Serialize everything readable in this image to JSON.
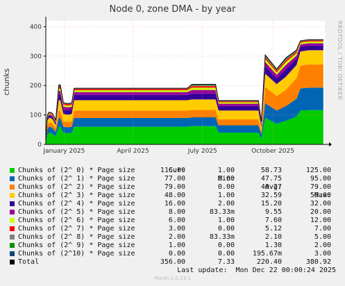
{
  "title": "Node 0, zone DMA - by year",
  "side_label": "RRDTOOL / TOBI OETIKER",
  "legend_headers": [
    "Cur:",
    "Min:",
    "Avg:",
    "Max:"
  ],
  "legend": [
    {
      "name": "Chunks of (2^ 0) * Page size",
      "color": "#00cc00",
      "cur": "116.00",
      "min": "1.00",
      "avg": "58.73",
      "max": "125.00"
    },
    {
      "name": "Chunks of (2^ 1) * Page size",
      "color": "#0066b3",
      "cur": "77.00",
      "min": "0.00",
      "avg": "47.75",
      "max": "95.00"
    },
    {
      "name": "Chunks of (2^ 2) * Page size",
      "color": "#ff8000",
      "cur": "79.00",
      "min": "0.00",
      "avg": "40.27",
      "max": "79.00"
    },
    {
      "name": "Chunks of (2^ 3) * Page size",
      "color": "#ffcc00",
      "cur": "48.00",
      "min": "1.00",
      "avg": "32.59",
      "max": "59.00"
    },
    {
      "name": "Chunks of (2^ 4) * Page size",
      "color": "#330099",
      "cur": "16.00",
      "min": "2.00",
      "avg": "15.20",
      "max": "32.00"
    },
    {
      "name": "Chunks of (2^ 5) * Page size",
      "color": "#990099",
      "cur": "8.00",
      "min": "83.33m",
      "avg": "9.55",
      "max": "20.00"
    },
    {
      "name": "Chunks of (2^ 6) * Page size",
      "color": "#ccff00",
      "cur": "6.00",
      "min": "1.00",
      "avg": "7.60",
      "max": "12.00"
    },
    {
      "name": "Chunks of (2^ 7) * Page size",
      "color": "#ff0000",
      "cur": "3.00",
      "min": "0.00",
      "avg": "5.12",
      "max": "7.00"
    },
    {
      "name": "Chunks of (2^ 8) * Page size",
      "color": "#808080",
      "cur": "2.00",
      "min": "83.33m",
      "avg": "2.10",
      "max": "5.00"
    },
    {
      "name": "Chunks of (2^ 9) * Page size",
      "color": "#008f00",
      "cur": "1.00",
      "min": "0.00",
      "avg": "1.30",
      "max": "2.00"
    },
    {
      "name": "Chunks of (2^10) * Page size",
      "color": "#00487d",
      "cur": "0.00",
      "min": "0.00",
      "avg": "195.67m",
      "max": "3.00"
    },
    {
      "name": "Total",
      "color": "#000000",
      "cur": "356.00",
      "min": "7.33",
      "avg": "220.40",
      "max": "380.92"
    }
  ],
  "last_update": "Last update:  Mon Dec 22 00:00:24 2025",
  "footer": "Munin 2.0.33-1",
  "chart_data": {
    "type": "area",
    "stacked": true,
    "ylabel": "chunks",
    "ylim": [
      0,
      420
    ],
    "yticks": [
      0,
      100,
      200,
      300,
      400
    ],
    "grid": true,
    "xlim": [
      "2024-12-22",
      "2025-12-22"
    ],
    "xticks": [
      {
        "label": "January 2025",
        "date": "2025-01-15"
      },
      {
        "label": "April 2025",
        "date": "2025-04-15"
      },
      {
        "label": "July 2025",
        "date": "2025-07-15"
      },
      {
        "label": "October 2025",
        "date": "2025-10-15"
      }
    ],
    "x": [
      "2024-12-22",
      "2024-12-24",
      "2024-12-26",
      "2024-12-28",
      "2024-12-31",
      "2025-01-04",
      "2025-01-08",
      "2025-01-10",
      "2025-01-14",
      "2025-01-20",
      "2025-01-25",
      "2025-01-28",
      "2025-02-01",
      "2025-03-01",
      "2025-04-01",
      "2025-05-01",
      "2025-06-01",
      "2025-06-25",
      "2025-07-01",
      "2025-07-20",
      "2025-08-01",
      "2025-08-05",
      "2025-09-01",
      "2025-09-20",
      "2025-09-26",
      "2025-09-30",
      "2025-10-05",
      "2025-10-20",
      "2025-11-01",
      "2025-11-15",
      "2025-11-20",
      "2025-12-01",
      "2025-12-10",
      "2025-12-20"
    ],
    "series": [
      {
        "name": "Chunks of (2^ 0) * Page size",
        "values": [
          5,
          30,
          40,
          40,
          35,
          28,
          60,
          60,
          40,
          38,
          40,
          60,
          60,
          60,
          60,
          60,
          60,
          60,
          62,
          62,
          62,
          40,
          40,
          40,
          40,
          20,
          90,
          70,
          80,
          95,
          115,
          116,
          116,
          116
        ]
      },
      {
        "name": "Chunks of (2^ 1) * Page size",
        "values": [
          2,
          20,
          20,
          20,
          20,
          15,
          30,
          30,
          20,
          20,
          20,
          30,
          30,
          30,
          30,
          30,
          30,
          30,
          30,
          30,
          30,
          25,
          25,
          25,
          25,
          15,
          50,
          45,
          50,
          60,
          75,
          77,
          77,
          77
        ]
      },
      {
        "name": "Chunks of (2^ 2) * Page size",
        "values": [
          1,
          15,
          15,
          15,
          15,
          12,
          25,
          25,
          18,
          18,
          18,
          25,
          25,
          25,
          25,
          25,
          25,
          25,
          25,
          25,
          25,
          20,
          20,
          20,
          20,
          10,
          55,
          50,
          55,
          70,
          78,
          79,
          79,
          79
        ]
      },
      {
        "name": "Chunks of (2^ 3) * Page size",
        "values": [
          1,
          15,
          15,
          15,
          15,
          10,
          35,
          35,
          25,
          25,
          25,
          35,
          35,
          35,
          35,
          35,
          35,
          35,
          36,
          36,
          36,
          30,
          30,
          30,
          30,
          12,
          45,
          40,
          45,
          45,
          48,
          48,
          48,
          48
        ]
      },
      {
        "name": "Chunks of (2^ 4) * Page size",
        "values": [
          1,
          8,
          8,
          8,
          8,
          6,
          20,
          20,
          15,
          15,
          15,
          18,
          18,
          18,
          18,
          18,
          18,
          18,
          20,
          20,
          20,
          15,
          15,
          15,
          15,
          8,
          25,
          20,
          25,
          20,
          16,
          16,
          16,
          16
        ]
      },
      {
        "name": "Chunks of (2^ 5) * Page size",
        "values": [
          0,
          4,
          4,
          4,
          4,
          4,
          12,
          12,
          10,
          10,
          10,
          10,
          10,
          10,
          10,
          10,
          10,
          10,
          12,
          12,
          12,
          8,
          8,
          8,
          8,
          5,
          15,
          12,
          15,
          12,
          8,
          8,
          8,
          8
        ]
      },
      {
        "name": "Chunks of (2^ 6) * Page size",
        "values": [
          0,
          3,
          3,
          3,
          3,
          3,
          8,
          8,
          6,
          6,
          6,
          6,
          6,
          6,
          6,
          6,
          6,
          6,
          8,
          8,
          8,
          5,
          5,
          5,
          5,
          3,
          10,
          8,
          10,
          8,
          6,
          6,
          6,
          6
        ]
      },
      {
        "name": "Chunks of (2^ 7) * Page size",
        "values": [
          0,
          2,
          2,
          2,
          2,
          2,
          6,
          6,
          4,
          4,
          4,
          4,
          4,
          4,
          4,
          4,
          4,
          4,
          5,
          5,
          5,
          3,
          3,
          3,
          3,
          2,
          6,
          5,
          6,
          5,
          3,
          3,
          3,
          3
        ]
      },
      {
        "name": "Chunks of (2^ 8) * Page size",
        "values": [
          0,
          1,
          1,
          1,
          1,
          1,
          3,
          3,
          2,
          2,
          2,
          2,
          2,
          2,
          2,
          2,
          2,
          2,
          3,
          3,
          3,
          2,
          2,
          2,
          2,
          1,
          4,
          3,
          4,
          3,
          2,
          2,
          2,
          2
        ]
      },
      {
        "name": "Chunks of (2^ 9) * Page size",
        "values": [
          0,
          1,
          1,
          1,
          1,
          1,
          2,
          2,
          1,
          1,
          1,
          1,
          1,
          1,
          1,
          1,
          1,
          1,
          2,
          2,
          2,
          1,
          1,
          1,
          1,
          1,
          2,
          2,
          2,
          2,
          1,
          1,
          1,
          1
        ]
      },
      {
        "name": "Chunks of (2^10) * Page size",
        "values": [
          0,
          0,
          0,
          0,
          0,
          0,
          1,
          1,
          0,
          0,
          0,
          0,
          0,
          0,
          0,
          0,
          0,
          0,
          1,
          1,
          1,
          0,
          0,
          0,
          0,
          0,
          2,
          1,
          2,
          1,
          0,
          0,
          0,
          0
        ]
      }
    ]
  }
}
